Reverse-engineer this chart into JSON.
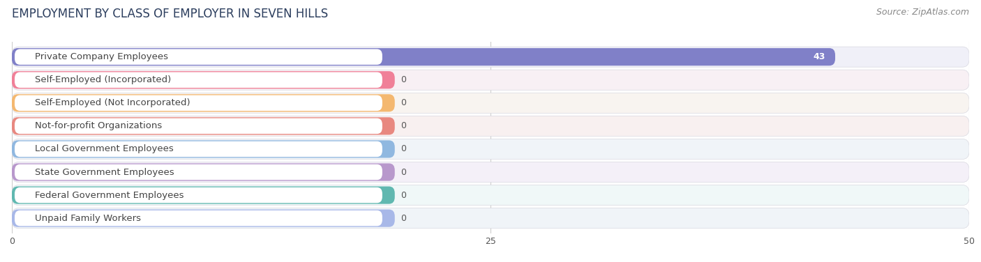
{
  "title": "EMPLOYMENT BY CLASS OF EMPLOYER IN SEVEN HILLS",
  "source": "Source: ZipAtlas.com",
  "categories": [
    "Private Company Employees",
    "Self-Employed (Incorporated)",
    "Self-Employed (Not Incorporated)",
    "Not-for-profit Organizations",
    "Local Government Employees",
    "State Government Employees",
    "Federal Government Employees",
    "Unpaid Family Workers"
  ],
  "values": [
    43,
    0,
    0,
    0,
    0,
    0,
    0,
    0
  ],
  "bar_colors": [
    "#8080c8",
    "#f08098",
    "#f4b870",
    "#e88880",
    "#90b8e0",
    "#b898cc",
    "#60b8b0",
    "#a8b8e8"
  ],
  "label_bg_colors": [
    "#ffffff",
    "#ffffff",
    "#ffffff",
    "#ffffff",
    "#ffffff",
    "#ffffff",
    "#ffffff",
    "#ffffff"
  ],
  "row_bg_colors": [
    "#f0f0f8",
    "#f8f0f4",
    "#f8f4f0",
    "#f8f0f0",
    "#f0f4f8",
    "#f4f0f8",
    "#f0f8f8",
    "#f0f4f8"
  ],
  "xlim": [
    0,
    50
  ],
  "xticks": [
    0,
    25,
    50
  ],
  "title_fontsize": 12,
  "source_fontsize": 9,
  "label_fontsize": 9.5,
  "value_fontsize": 9
}
